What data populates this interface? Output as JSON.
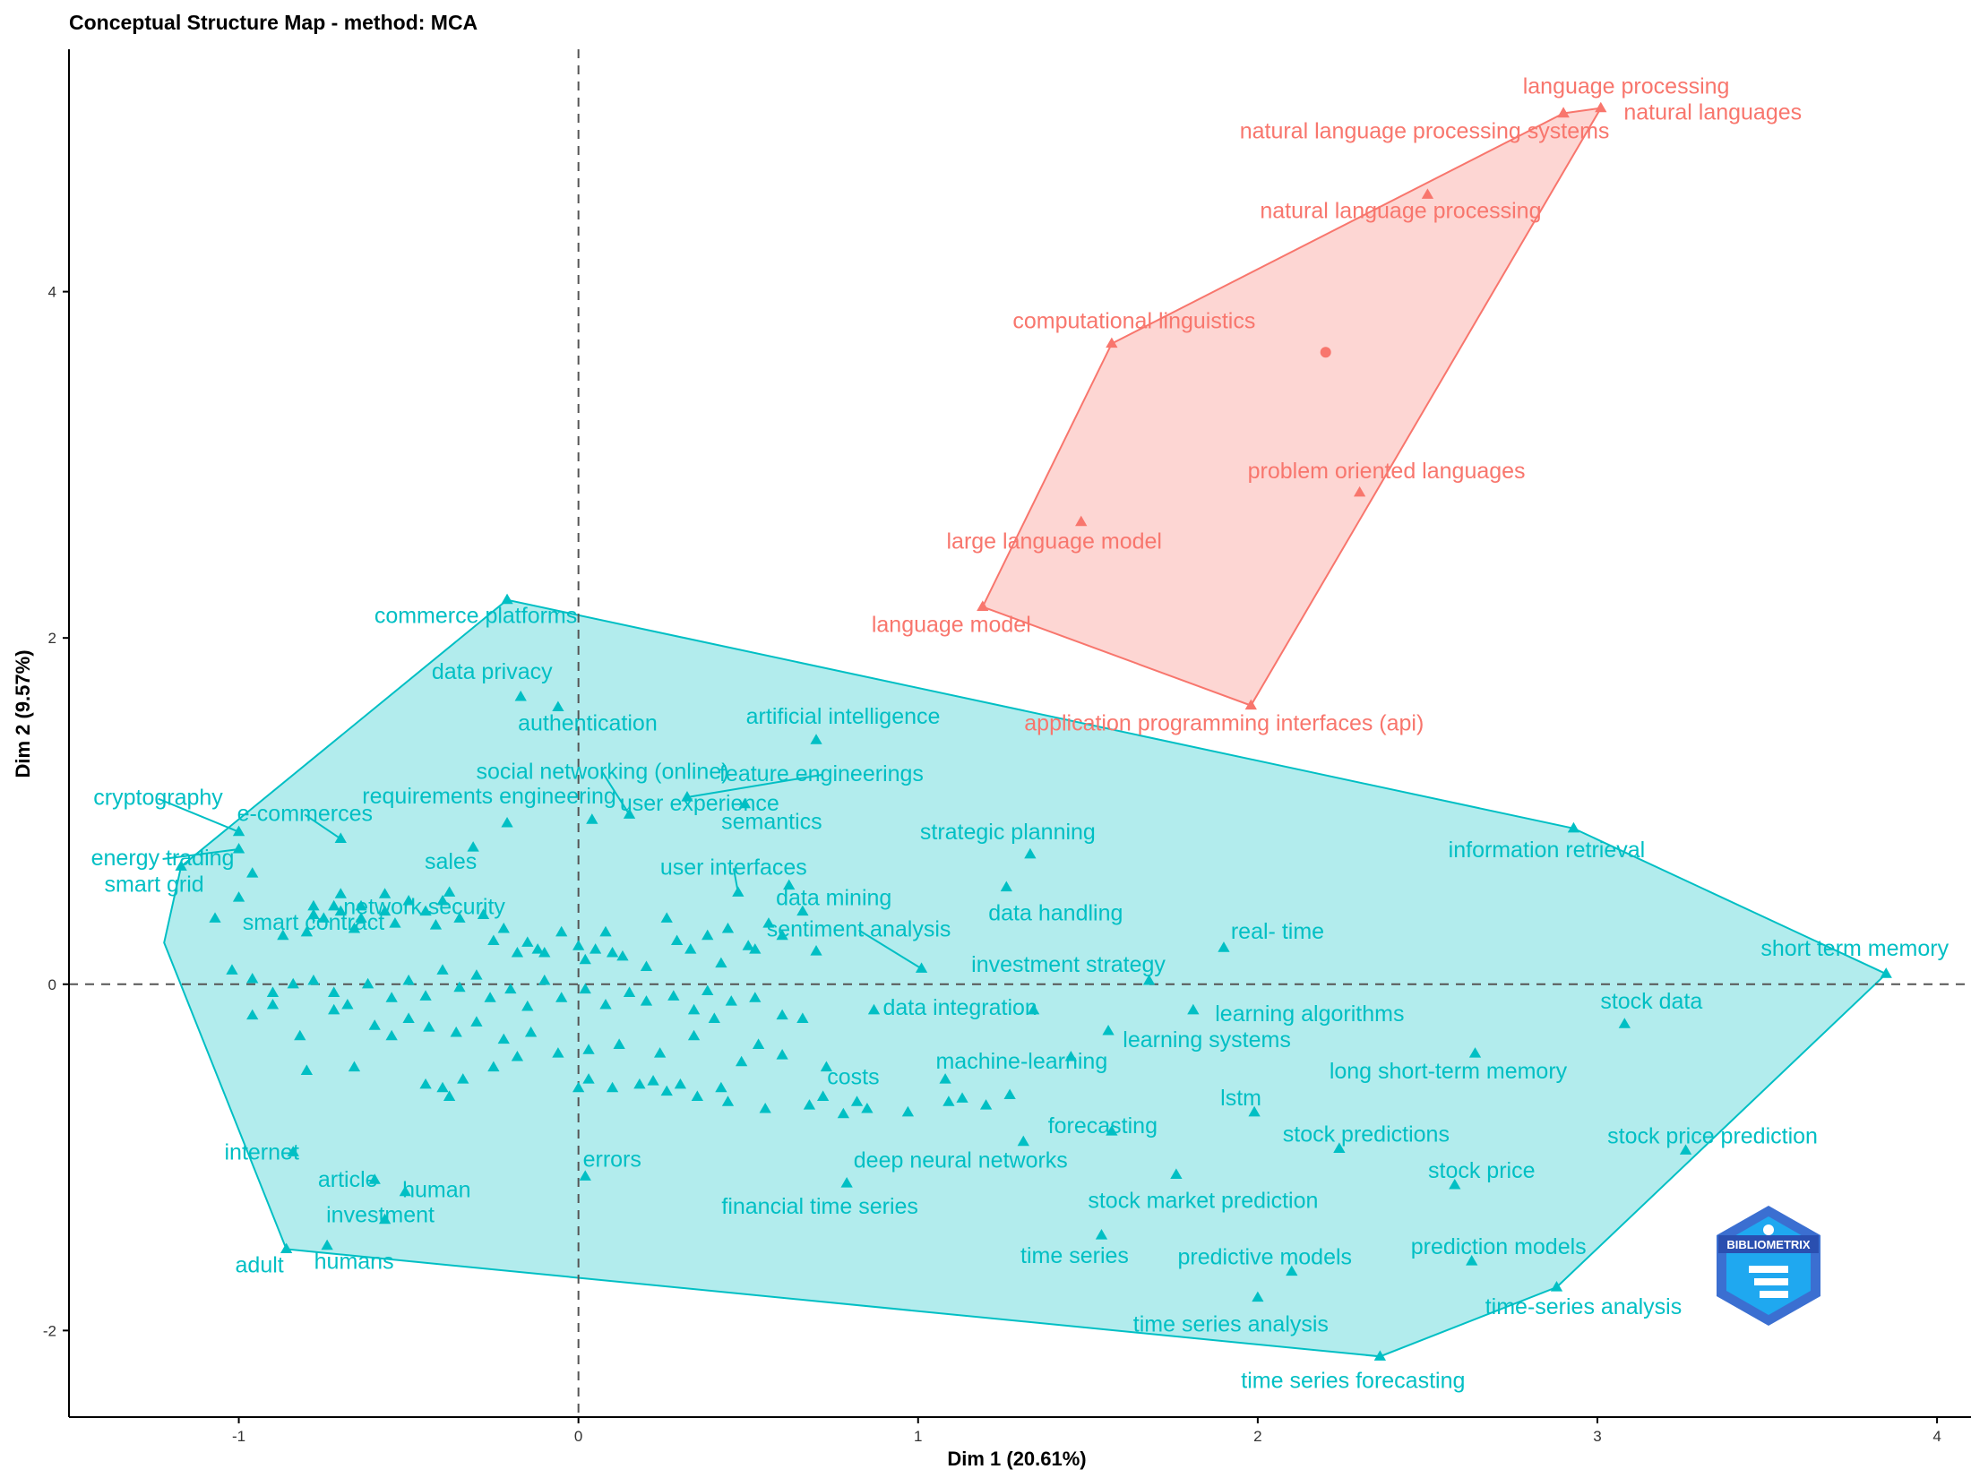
{
  "chart_data": {
    "type": "scatter",
    "title": "Conceptual Structure Map - method: MCA",
    "xlabel": "Dim 1 (20.61%)",
    "ylabel": "Dim 2 (9.57%)",
    "xlim": [
      -1.5,
      4.1
    ],
    "ylim": [
      -2.5,
      5.4
    ],
    "xticks": [
      -1,
      0,
      1,
      2,
      3,
      4
    ],
    "yticks": [
      -2,
      0,
      2,
      4
    ],
    "xtick_labels": [
      "-1",
      "0",
      "1",
      "2",
      "3",
      "4"
    ],
    "ytick_labels": [
      "-2",
      "0",
      "2",
      "4"
    ],
    "reference_lines": {
      "x": 0,
      "y": 0,
      "style": "dashed"
    },
    "grid": false,
    "logo_text": "BIBLIOMETRIX",
    "clusters": [
      {
        "color": "#F8766D",
        "fill": "#F8766D",
        "hull": [
          [
            1.19,
            2.18
          ],
          [
            1.57,
            3.7
          ],
          [
            2.9,
            5.03
          ],
          [
            3.01,
            5.06
          ],
          [
            1.98,
            1.61
          ]
        ],
        "centroid": [
          2.2,
          3.65
        ],
        "labeled_points": [
          {
            "label": "language processing",
            "x": 2.9,
            "y": 5.03
          },
          {
            "label": "natural languages",
            "x": 3.01,
            "y": 5.06
          },
          {
            "label": "natural language processing systems",
            "x": 2.9,
            "y": 5.03
          },
          {
            "label": "natural language processing",
            "x": 2.5,
            "y": 4.56
          },
          {
            "label": "computational linguistics",
            "x": 1.57,
            "y": 3.7
          },
          {
            "label": "problem oriented languages",
            "x": 2.3,
            "y": 2.84
          },
          {
            "label": "large language model",
            "x": 1.48,
            "y": 2.67
          },
          {
            "label": "language model",
            "x": 1.19,
            "y": 2.18
          },
          {
            "label": "application programming interfaces (api)",
            "x": 1.98,
            "y": 1.61
          }
        ]
      },
      {
        "color": "#00BFC4",
        "fill": "#00BFC4",
        "hull": [
          [
            -0.21,
            2.22
          ],
          [
            2.93,
            0.9
          ],
          [
            3.85,
            0.06
          ],
          [
            2.88,
            -1.75
          ],
          [
            2.36,
            -2.15
          ],
          [
            -0.86,
            -1.53
          ],
          [
            -1.22,
            0.24
          ],
          [
            -1.17,
            0.68
          ]
        ],
        "labeled_points": [
          {
            "label": "commerce platforms",
            "x": -0.21,
            "y": 2.22
          },
          {
            "label": "data privacy",
            "x": -0.17,
            "y": 1.66
          },
          {
            "label": "authentication",
            "x": -0.06,
            "y": 1.6
          },
          {
            "label": "artificial intelligence",
            "x": 0.7,
            "y": 1.41
          },
          {
            "label": "social networking (online)",
            "x": 0.15,
            "y": 0.98
          },
          {
            "label": "feature engineerings",
            "x": 0.32,
            "y": 1.08
          },
          {
            "label": "cryptography",
            "x": -1.0,
            "y": 0.88
          },
          {
            "label": "e-commerces",
            "x": -0.7,
            "y": 0.84
          },
          {
            "label": "requirements engineering",
            "x": -0.21,
            "y": 0.93
          },
          {
            "label": "semantics",
            "x": 0.49,
            "y": 1.04
          },
          {
            "label": "energy trading",
            "x": -1.0,
            "y": 0.78
          },
          {
            "label": "sales",
            "x": -0.31,
            "y": 0.79
          },
          {
            "label": "user experience",
            "x": 0.04,
            "y": 0.95
          },
          {
            "label": "strategic planning",
            "x": 1.33,
            "y": 0.75
          },
          {
            "label": "information retrieval",
            "x": 2.93,
            "y": 0.9
          },
          {
            "label": "smart contract",
            "x": -0.78,
            "y": 0.45
          },
          {
            "label": "user interfaces",
            "x": 0.47,
            "y": 0.53
          },
          {
            "label": "smart grid",
            "x": -1.17,
            "y": 0.68
          },
          {
            "label": "network security",
            "x": -0.38,
            "y": 0.53
          },
          {
            "label": "data mining",
            "x": 0.62,
            "y": 0.57
          },
          {
            "label": "data handling",
            "x": 1.26,
            "y": 0.56
          },
          {
            "label": "sentiment analysis",
            "x": 1.01,
            "y": 0.09
          },
          {
            "label": "real- time",
            "x": 1.9,
            "y": 0.21
          },
          {
            "label": "short term memory",
            "x": 3.85,
            "y": 0.06
          },
          {
            "label": "investment strategy",
            "x": 1.68,
            "y": 0.02
          },
          {
            "label": "learning algorithms",
            "x": 1.81,
            "y": -0.15
          },
          {
            "label": "data integration",
            "x": 1.34,
            "y": -0.15
          },
          {
            "label": "stock data",
            "x": 3.08,
            "y": -0.23
          },
          {
            "label": "learning systems",
            "x": 1.56,
            "y": -0.27
          },
          {
            "label": "costs",
            "x": 0.73,
            "y": -0.48
          },
          {
            "label": "long short-term memory",
            "x": 2.64,
            "y": -0.4
          },
          {
            "label": "machine-learning",
            "x": 1.45,
            "y": -0.42
          },
          {
            "label": "lstm",
            "x": 1.99,
            "y": -0.74
          },
          {
            "label": "forecasting",
            "x": 1.57,
            "y": -0.85
          },
          {
            "label": "stock predictions",
            "x": 2.24,
            "y": -0.95
          },
          {
            "label": "stock price prediction",
            "x": 3.26,
            "y": -0.96
          },
          {
            "label": "internet",
            "x": -0.84,
            "y": -0.97
          },
          {
            "label": "deep neural networks",
            "x": 1.31,
            "y": -0.91
          },
          {
            "label": "errors",
            "x": 0.02,
            "y": -1.11
          },
          {
            "label": "article",
            "x": -0.6,
            "y": -1.13
          },
          {
            "label": "human",
            "x": -0.51,
            "y": -1.2
          },
          {
            "label": "stock price",
            "x": 2.58,
            "y": -1.16
          },
          {
            "label": "financial time series",
            "x": 0.79,
            "y": -1.15
          },
          {
            "label": "stock market prediction",
            "x": 1.76,
            "y": -1.1
          },
          {
            "label": "investment",
            "x": -0.57,
            "y": -1.36
          },
          {
            "label": "adult",
            "x": -0.86,
            "y": -1.53
          },
          {
            "label": "humans",
            "x": -0.74,
            "y": -1.51
          },
          {
            "label": "time series",
            "x": 1.54,
            "y": -1.45
          },
          {
            "label": "predictive models",
            "x": 2.1,
            "y": -1.66
          },
          {
            "label": "prediction models",
            "x": 2.63,
            "y": -1.6
          },
          {
            "label": "time series analysis",
            "x": 2.0,
            "y": -1.81
          },
          {
            "label": "time-series analysis",
            "x": 2.88,
            "y": -1.75
          },
          {
            "label": "time series forecasting",
            "x": 2.36,
            "y": -2.15
          }
        ],
        "other_points": [
          [
            -0.96,
            0.64
          ],
          [
            -1.0,
            0.5
          ],
          [
            -1.07,
            0.38
          ],
          [
            -0.87,
            0.28
          ],
          [
            -0.8,
            0.3
          ],
          [
            -0.78,
            0.4
          ],
          [
            -0.75,
            0.38
          ],
          [
            -0.72,
            0.45
          ],
          [
            -0.7,
            0.42
          ],
          [
            -0.66,
            0.32
          ],
          [
            -0.64,
            0.38
          ],
          [
            -0.57,
            0.42
          ],
          [
            -0.5,
            0.48
          ],
          [
            -0.45,
            0.42
          ],
          [
            -0.42,
            0.34
          ],
          [
            -0.4,
            0.48
          ],
          [
            -0.35,
            0.38
          ],
          [
            -0.28,
            0.4
          ],
          [
            -0.25,
            0.25
          ],
          [
            -0.22,
            0.32
          ],
          [
            -0.18,
            0.18
          ],
          [
            -0.15,
            0.24
          ],
          [
            -0.12,
            0.2
          ],
          [
            -0.1,
            0.18
          ],
          [
            -0.05,
            0.3
          ],
          [
            0.0,
            0.22
          ],
          [
            0.02,
            0.14
          ],
          [
            0.05,
            0.2
          ],
          [
            0.08,
            0.3
          ],
          [
            0.1,
            0.18
          ],
          [
            0.13,
            0.16
          ],
          [
            0.2,
            0.1
          ],
          [
            0.26,
            0.38
          ],
          [
            0.29,
            0.25
          ],
          [
            0.33,
            0.2
          ],
          [
            0.38,
            0.28
          ],
          [
            0.42,
            0.12
          ],
          [
            0.5,
            0.22
          ],
          [
            0.56,
            0.35
          ],
          [
            0.6,
            0.28
          ],
          [
            0.7,
            0.19
          ],
          [
            0.66,
            0.42
          ],
          [
            -0.7,
            0.52
          ],
          [
            -0.64,
            0.45
          ],
          [
            -0.57,
            0.52
          ],
          [
            -0.54,
            0.35
          ],
          [
            -1.02,
            0.08
          ],
          [
            -0.96,
            0.03
          ],
          [
            -0.9,
            -0.05
          ],
          [
            -0.84,
            0.0
          ],
          [
            -0.78,
            0.02
          ],
          [
            -0.72,
            -0.05
          ],
          [
            -0.68,
            -0.12
          ],
          [
            -0.62,
            0.0
          ],
          [
            -0.55,
            -0.08
          ],
          [
            -0.5,
            0.02
          ],
          [
            -0.45,
            -0.07
          ],
          [
            -0.4,
            0.08
          ],
          [
            -0.35,
            -0.02
          ],
          [
            -0.3,
            0.05
          ],
          [
            -0.26,
            -0.08
          ],
          [
            -0.2,
            -0.03
          ],
          [
            -0.15,
            -0.13
          ],
          [
            -0.1,
            0.02
          ],
          [
            -0.05,
            -0.08
          ],
          [
            0.02,
            -0.03
          ],
          [
            0.08,
            -0.12
          ],
          [
            0.15,
            -0.05
          ],
          [
            0.2,
            -0.1
          ],
          [
            0.28,
            -0.07
          ],
          [
            0.34,
            -0.15
          ],
          [
            0.38,
            -0.04
          ],
          [
            0.45,
            -0.1
          ],
          [
            0.52,
            -0.08
          ],
          [
            0.6,
            -0.18
          ],
          [
            0.66,
            -0.2
          ],
          [
            -0.96,
            -0.18
          ],
          [
            -0.9,
            -0.12
          ],
          [
            -0.82,
            -0.3
          ],
          [
            -0.72,
            -0.15
          ],
          [
            -0.6,
            -0.24
          ],
          [
            -0.55,
            -0.3
          ],
          [
            -0.5,
            -0.2
          ],
          [
            -0.44,
            -0.25
          ],
          [
            -0.36,
            -0.28
          ],
          [
            -0.3,
            -0.22
          ],
          [
            -0.22,
            -0.32
          ],
          [
            -0.14,
            -0.28
          ],
          [
            -0.06,
            -0.4
          ],
          [
            0.03,
            -0.38
          ],
          [
            0.12,
            -0.35
          ],
          [
            0.24,
            -0.4
          ],
          [
            0.34,
            -0.3
          ],
          [
            0.4,
            -0.2
          ],
          [
            0.48,
            -0.45
          ],
          [
            0.53,
            -0.35
          ],
          [
            0.6,
            -0.41
          ],
          [
            -0.4,
            -0.6
          ],
          [
            -0.38,
            -0.65
          ],
          [
            -0.45,
            -0.58
          ],
          [
            -0.34,
            -0.55
          ],
          [
            -0.25,
            -0.48
          ],
          [
            -0.18,
            -0.42
          ],
          [
            -0.8,
            -0.5
          ],
          [
            -0.66,
            -0.48
          ],
          [
            0.0,
            -0.6
          ],
          [
            0.03,
            -0.55
          ],
          [
            0.1,
            -0.6
          ],
          [
            0.18,
            -0.58
          ],
          [
            0.22,
            -0.56
          ],
          [
            0.26,
            -0.62
          ],
          [
            0.3,
            -0.58
          ],
          [
            0.35,
            -0.65
          ],
          [
            0.42,
            -0.6
          ],
          [
            0.44,
            -0.68
          ],
          [
            0.55,
            -0.72
          ],
          [
            0.68,
            -0.7
          ],
          [
            0.72,
            -0.65
          ],
          [
            0.78,
            -0.75
          ],
          [
            0.82,
            -0.68
          ],
          [
            0.85,
            -0.72
          ],
          [
            0.97,
            -0.74
          ],
          [
            1.09,
            -0.68
          ],
          [
            1.13,
            -0.66
          ],
          [
            1.2,
            -0.7
          ],
          [
            1.27,
            -0.64
          ],
          [
            0.87,
            -0.15
          ],
          [
            1.08,
            -0.55
          ],
          [
            0.52,
            0.2
          ],
          [
            0.44,
            0.32
          ]
        ]
      }
    ]
  }
}
